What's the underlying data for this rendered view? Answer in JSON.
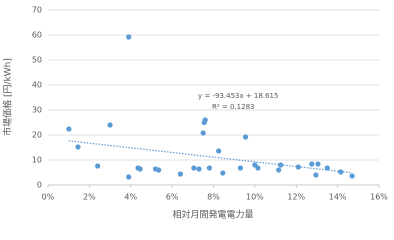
{
  "chart_data": {
    "type": "scatter",
    "xlabel": "相対月間発電電力量",
    "ylabel": "市場価格 [円/kWh]",
    "annotations": [
      "y = -93.453x + 18.615",
      "R² = 0.1283"
    ],
    "series": [
      {
        "color": "#5b9bd5",
        "x": [
          1.01,
          1.45,
          2.4,
          3.0,
          3.9,
          3.9,
          4.35,
          4.45,
          5.2,
          5.35,
          6.4,
          7.05,
          7.3,
          7.5,
          7.6,
          7.55,
          7.8,
          8.25,
          8.45,
          9.3,
          9.55,
          10.0,
          10.15,
          11.15,
          11.25,
          12.1,
          12.75,
          13.05,
          12.95,
          13.5,
          14.15,
          14.7
        ],
        "values": [
          22.4,
          15.2,
          7.6,
          24,
          59.2,
          3.2,
          6.8,
          6.4,
          6.4,
          6,
          4.4,
          6.8,
          6.4,
          20.8,
          26,
          25,
          6.8,
          13.6,
          4.8,
          6.8,
          19.2,
          8,
          6.8,
          6,
          8,
          7.2,
          8.4,
          8.4,
          4,
          6.8,
          5.2,
          3.6
        ]
      }
    ],
    "trendline": {
      "x": [
        1.0,
        14.7
      ],
      "values": [
        17.68,
        4.88
      ]
    },
    "xlim": [
      0,
      16
    ],
    "xticks": [
      {
        "value": 0,
        "label": "0%"
      },
      {
        "value": 2,
        "label": "2%"
      },
      {
        "value": 4,
        "label": "4%"
      },
      {
        "value": 6,
        "label": "6%"
      },
      {
        "value": 8,
        "label": "8%"
      },
      {
        "value": 10,
        "label": "10%"
      },
      {
        "value": 12,
        "label": "12%"
      },
      {
        "value": 14,
        "label": "14%"
      },
      {
        "value": 16,
        "label": "16%"
      }
    ],
    "ylim": [
      0,
      70
    ],
    "yticks": [
      0,
      10,
      20,
      30,
      40,
      50,
      60,
      70
    ],
    "grid": true
  }
}
